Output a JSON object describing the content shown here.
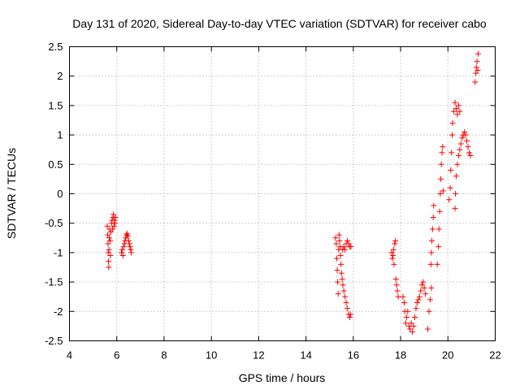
{
  "chart_data": {
    "type": "scatter",
    "title": "Day 131 of 2020, Sidereal Day-to-day VTEC variation (SDTVAR) for receiver cabo",
    "xlabel": "GPS time / hours",
    "ylabel": "SDTVAR / TECUs",
    "xlim": [
      4,
      22
    ],
    "ylim": [
      -2.5,
      2.5
    ],
    "xticks": [
      4,
      6,
      8,
      10,
      12,
      14,
      16,
      18,
      20,
      22
    ],
    "yticks": [
      -2.5,
      -2,
      -1.5,
      -1,
      -0.5,
      0,
      0.5,
      1,
      1.5,
      2,
      2.5
    ],
    "xtick_labels": [
      "4",
      "6",
      "8",
      "10",
      "12",
      "14",
      "16",
      "18",
      "20",
      "22"
    ],
    "ytick_labels": [
      "-2.5",
      "-2",
      "-1.5",
      "-1",
      "-0.5",
      "0",
      "0.5",
      "1",
      "1.5",
      "2",
      "2.5"
    ],
    "grid": true,
    "marker": "+",
    "color": "#ff0000",
    "series": [
      {
        "name": "SDTVAR",
        "points": [
          [
            5.6,
            -0.55
          ],
          [
            5.62,
            -0.7
          ],
          [
            5.63,
            -0.85
          ],
          [
            5.64,
            -1.0
          ],
          [
            5.65,
            -1.15
          ],
          [
            5.66,
            -1.25
          ],
          [
            5.67,
            -0.95
          ],
          [
            5.68,
            -0.75
          ],
          [
            5.7,
            -0.6
          ],
          [
            5.72,
            -0.8
          ],
          [
            5.73,
            -1.05
          ],
          [
            5.75,
            -0.65
          ],
          [
            5.78,
            -0.5
          ],
          [
            5.8,
            -0.45
          ],
          [
            5.82,
            -0.6
          ],
          [
            5.84,
            -0.4
          ],
          [
            5.86,
            -0.35
          ],
          [
            5.88,
            -0.55
          ],
          [
            5.9,
            -0.45
          ],
          [
            5.92,
            -0.5
          ],
          [
            5.94,
            -0.4
          ],
          [
            6.2,
            -1.0
          ],
          [
            6.23,
            -0.95
          ],
          [
            6.26,
            -1.05
          ],
          [
            6.29,
            -0.9
          ],
          [
            6.32,
            -0.85
          ],
          [
            6.35,
            -0.8
          ],
          [
            6.38,
            -0.75
          ],
          [
            6.41,
            -0.7
          ],
          [
            6.44,
            -0.68
          ],
          [
            6.47,
            -0.72
          ],
          [
            6.5,
            -0.8
          ],
          [
            6.53,
            -0.85
          ],
          [
            6.56,
            -0.9
          ],
          [
            6.59,
            -0.95
          ],
          [
            6.61,
            -1.0
          ],
          [
            15.25,
            -0.75
          ],
          [
            15.28,
            -0.85
          ],
          [
            15.3,
            -1.1
          ],
          [
            15.32,
            -1.3
          ],
          [
            15.34,
            -1.5
          ],
          [
            15.36,
            -1.7
          ],
          [
            15.38,
            -0.95
          ],
          [
            15.4,
            -0.7
          ],
          [
            15.42,
            -0.8
          ],
          [
            15.44,
            -0.9
          ],
          [
            15.46,
            -1.05
          ],
          [
            15.48,
            -1.2
          ],
          [
            15.5,
            -1.35
          ],
          [
            15.53,
            -1.45
          ],
          [
            15.56,
            -1.55
          ],
          [
            15.6,
            -1.65
          ],
          [
            15.65,
            -1.75
          ],
          [
            15.7,
            -1.85
          ],
          [
            15.75,
            -1.95
          ],
          [
            15.8,
            -2.05
          ],
          [
            15.85,
            -2.1
          ],
          [
            15.88,
            -2.05
          ],
          [
            15.55,
            -0.95
          ],
          [
            15.6,
            -0.9
          ],
          [
            15.65,
            -0.95
          ],
          [
            15.7,
            -0.85
          ],
          [
            15.75,
            -0.8
          ],
          [
            15.8,
            -0.85
          ],
          [
            15.85,
            -0.9
          ],
          [
            15.9,
            -0.9
          ],
          [
            17.62,
            -1.0
          ],
          [
            17.65,
            -1.1
          ],
          [
            17.68,
            -1.05
          ],
          [
            17.7,
            -0.95
          ],
          [
            17.72,
            -1.2
          ],
          [
            17.75,
            -0.85
          ],
          [
            17.78,
            -0.8
          ],
          [
            17.8,
            -1.45
          ],
          [
            17.83,
            -1.55
          ],
          [
            17.86,
            -1.65
          ],
          [
            17.9,
            -1.75
          ],
          [
            18.1,
            -1.75
          ],
          [
            18.15,
            -1.85
          ],
          [
            18.18,
            -2.0
          ],
          [
            18.22,
            -2.2
          ],
          [
            18.25,
            -2.1
          ],
          [
            18.3,
            -2.0
          ],
          [
            18.35,
            -2.25
          ],
          [
            18.4,
            -2.3
          ],
          [
            18.45,
            -2.2
          ],
          [
            18.5,
            -2.35
          ],
          [
            18.55,
            -2.25
          ],
          [
            18.6,
            -2.1
          ],
          [
            18.65,
            -1.95
          ],
          [
            18.7,
            -1.85
          ],
          [
            18.75,
            -1.8
          ],
          [
            18.8,
            -1.75
          ],
          [
            18.85,
            -1.65
          ],
          [
            18.9,
            -1.55
          ],
          [
            18.95,
            -1.5
          ],
          [
            19.0,
            -1.6
          ],
          [
            19.05,
            -1.7
          ],
          [
            19.15,
            -2.3
          ],
          [
            19.2,
            -2.0
          ],
          [
            19.25,
            -1.8
          ],
          [
            19.3,
            -1.6
          ],
          [
            19.28,
            -1.2
          ],
          [
            19.3,
            -1.0
          ],
          [
            19.32,
            -0.8
          ],
          [
            19.35,
            -0.6
          ],
          [
            19.38,
            -0.4
          ],
          [
            19.4,
            -0.2
          ],
          [
            19.55,
            -1.2
          ],
          [
            19.6,
            -0.9
          ],
          [
            19.62,
            -0.6
          ],
          [
            19.65,
            -0.3
          ],
          [
            19.68,
            0.0
          ],
          [
            19.7,
            0.25
          ],
          [
            19.72,
            0.5
          ],
          [
            19.75,
            0.7
          ],
          [
            19.78,
            0.8
          ],
          [
            19.8,
            0.05
          ],
          [
            20.05,
            -0.1
          ],
          [
            20.1,
            0.1
          ],
          [
            20.12,
            0.4
          ],
          [
            20.15,
            0.7
          ],
          [
            20.18,
            1.0
          ],
          [
            20.2,
            1.2
          ],
          [
            20.25,
            1.4
          ],
          [
            20.3,
            1.55
          ],
          [
            20.35,
            1.45
          ],
          [
            20.4,
            1.35
          ],
          [
            20.45,
            1.5
          ],
          [
            20.5,
            1.4
          ],
          [
            20.3,
            -0.25
          ],
          [
            20.32,
            0.0
          ],
          [
            20.35,
            0.3
          ],
          [
            20.4,
            0.5
          ],
          [
            20.45,
            0.65
          ],
          [
            20.5,
            0.75
          ],
          [
            20.55,
            0.85
          ],
          [
            20.6,
            0.95
          ],
          [
            20.65,
            1.0
          ],
          [
            20.7,
            1.05
          ],
          [
            20.75,
            1.0
          ],
          [
            20.8,
            0.9
          ],
          [
            20.85,
            0.8
          ],
          [
            20.9,
            0.7
          ],
          [
            20.95,
            0.65
          ],
          [
            21.15,
            1.9
          ],
          [
            21.18,
            2.05
          ],
          [
            21.2,
            2.15
          ],
          [
            21.23,
            2.25
          ],
          [
            21.26,
            2.1
          ],
          [
            21.28,
            2.38
          ]
        ]
      }
    ]
  }
}
